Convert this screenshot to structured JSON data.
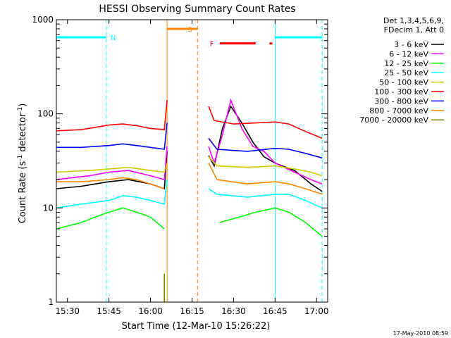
{
  "chart_data": {
    "type": "line",
    "title": "HESSI Observing Summary Count Rates",
    "xlabel": "Start Time (12-Mar-10 15:26:22)",
    "ylabel_main": "Count Rate (s",
    "ylabel_sup1": "-1",
    "ylabel_mid": " detector",
    "ylabel_sup2": "-1",
    "ylabel_end": ")",
    "y_scale": "log",
    "ylim": [
      1,
      1000
    ],
    "xlim": [
      "15:26",
      "17:04"
    ],
    "x_ticks": [
      "15:30",
      "15:45",
      "16:00",
      "16:15",
      "16:30",
      "16:45",
      "17:00"
    ],
    "y_ticks": [
      {
        "label": "1",
        "value": 1
      },
      {
        "label": "10",
        "value": 10
      },
      {
        "label": "100",
        "value": 100
      },
      {
        "label": "1000",
        "value": 1000
      }
    ],
    "legend_header": [
      "Det 1,3,4,5,6,9,",
      "FDecim 1, Att 0"
    ],
    "legend_placement": "right",
    "footer": "17-May-2010 08:59",
    "series": [
      {
        "name": "3 - 6 keV",
        "color": "#000000",
        "points": [
          [
            "15:26",
            16
          ],
          [
            "15:35",
            17
          ],
          [
            "15:45",
            19
          ],
          [
            "15:52",
            20
          ],
          [
            "16:00",
            18
          ],
          [
            "16:05",
            16
          ],
          [
            "16:06",
            40
          ],
          [
            "16:21",
            null
          ],
          [
            "16:21",
            36
          ],
          [
            "16:23",
            28
          ],
          [
            "16:26",
            70
          ],
          [
            "16:29",
            120
          ],
          [
            "16:33",
            80
          ],
          [
            "16:37",
            50
          ],
          [
            "16:41",
            35
          ],
          [
            "16:45",
            30
          ],
          [
            "16:52",
            25
          ],
          [
            "16:58",
            18
          ],
          [
            "17:02",
            15
          ]
        ]
      },
      {
        "name": "6 - 12 keV",
        "color": "#ff00ff",
        "points": [
          [
            "15:26",
            20
          ],
          [
            "15:38",
            22
          ],
          [
            "15:45",
            24
          ],
          [
            "15:52",
            25
          ],
          [
            "16:00",
            22
          ],
          [
            "16:05",
            20
          ],
          [
            "16:06",
            45
          ],
          [
            "16:21",
            null
          ],
          [
            "16:21",
            45
          ],
          [
            "16:23",
            30
          ],
          [
            "16:26",
            60
          ],
          [
            "16:29",
            140
          ],
          [
            "16:33",
            70
          ],
          [
            "16:37",
            45
          ],
          [
            "16:41",
            40
          ],
          [
            "16:45",
            30
          ],
          [
            "16:52",
            24
          ],
          [
            "16:58",
            20
          ],
          [
            "17:02",
            18
          ]
        ]
      },
      {
        "name": "12 - 25 keV",
        "color": "#00ff00",
        "points": [
          [
            "15:26",
            6
          ],
          [
            "15:35",
            7
          ],
          [
            "15:40",
            8
          ],
          [
            "15:45",
            9
          ],
          [
            "15:50",
            10
          ],
          [
            "15:55",
            9
          ],
          [
            "16:00",
            8
          ],
          [
            "16:05",
            6
          ],
          [
            "16:21",
            null
          ],
          [
            "16:25",
            7
          ],
          [
            "16:32",
            8
          ],
          [
            "16:38",
            9
          ],
          [
            "16:45",
            10
          ],
          [
            "16:50",
            9
          ],
          [
            "16:56",
            7
          ],
          [
            "17:02",
            5
          ]
        ]
      },
      {
        "name": "25 - 50 keV",
        "color": "#00ffff",
        "points": [
          [
            "15:26",
            10
          ],
          [
            "15:35",
            11
          ],
          [
            "15:45",
            12
          ],
          [
            "15:50",
            13.5
          ],
          [
            "15:55",
            13
          ],
          [
            "16:00",
            12
          ],
          [
            "16:05",
            11
          ],
          [
            "16:06",
            20
          ],
          [
            "16:21",
            null
          ],
          [
            "16:21",
            16
          ],
          [
            "16:24",
            14
          ],
          [
            "16:35",
            13
          ],
          [
            "16:45",
            14
          ],
          [
            "16:50",
            14
          ],
          [
            "16:56",
            12
          ],
          [
            "17:02",
            10
          ]
        ]
      },
      {
        "name": "50 - 100 keV",
        "color": "#cccc00",
        "points": [
          [
            "15:26",
            24
          ],
          [
            "15:38",
            25
          ],
          [
            "15:45",
            26
          ],
          [
            "15:52",
            27
          ],
          [
            "16:00",
            25
          ],
          [
            "16:05",
            24
          ],
          [
            "16:06",
            30
          ],
          [
            "16:21",
            null
          ],
          [
            "16:21",
            35
          ],
          [
            "16:24",
            28
          ],
          [
            "16:35",
            27
          ],
          [
            "16:45",
            28
          ],
          [
            "16:52",
            26
          ],
          [
            "16:58",
            24
          ],
          [
            "17:02",
            22
          ]
        ]
      },
      {
        "name": "100 - 300 keV",
        "color": "#ff0000",
        "points": [
          [
            "15:26",
            66
          ],
          [
            "15:35",
            68
          ],
          [
            "15:45",
            76
          ],
          [
            "15:50",
            78
          ],
          [
            "15:55",
            75
          ],
          [
            "16:00",
            70
          ],
          [
            "16:05",
            68
          ],
          [
            "16:06",
            140
          ],
          [
            "16:21",
            null
          ],
          [
            "16:21",
            120
          ],
          [
            "16:23",
            85
          ],
          [
            "16:30",
            78
          ],
          [
            "16:38",
            80
          ],
          [
            "16:45",
            82
          ],
          [
            "16:50",
            78
          ],
          [
            "16:56",
            65
          ],
          [
            "17:02",
            55
          ]
        ]
      },
      {
        "name": "300 - 800 keV",
        "color": "#0000ff",
        "points": [
          [
            "15:26",
            44
          ],
          [
            "15:35",
            44
          ],
          [
            "15:45",
            46
          ],
          [
            "15:50",
            48
          ],
          [
            "15:55",
            46
          ],
          [
            "16:00",
            44
          ],
          [
            "16:05",
            42
          ],
          [
            "16:06",
            80
          ],
          [
            "16:21",
            null
          ],
          [
            "16:21",
            55
          ],
          [
            "16:24",
            42
          ],
          [
            "16:35",
            40
          ],
          [
            "16:45",
            43
          ],
          [
            "16:50",
            42
          ],
          [
            "16:56",
            38
          ],
          [
            "17:02",
            34
          ]
        ]
      },
      {
        "name": "800 - 7000 keV",
        "color": "#ff8800",
        "points": [
          [
            "15:26",
            19
          ],
          [
            "15:35",
            19
          ],
          [
            "15:45",
            20
          ],
          [
            "15:50",
            21
          ],
          [
            "15:55",
            20
          ],
          [
            "16:00",
            18
          ],
          [
            "16:05",
            16
          ],
          [
            "16:21",
            null
          ],
          [
            "16:21",
            30
          ],
          [
            "16:24",
            20
          ],
          [
            "16:35",
            18
          ],
          [
            "16:45",
            19
          ],
          [
            "16:50",
            18
          ],
          [
            "16:56",
            16
          ],
          [
            "17:02",
            14
          ]
        ]
      },
      {
        "name": "7000 - 20000 keV",
        "color": "#808000",
        "points": [
          [
            "16:05",
            1
          ],
          [
            "16:05",
            2
          ]
        ]
      }
    ],
    "flags": [
      {
        "label": "N",
        "color": "#00ffff",
        "value": 650,
        "segments": [
          [
            "15:26",
            "15:44"
          ],
          [
            "16:45",
            "17:02"
          ]
        ]
      },
      {
        "label": "S",
        "color": "#ff8800",
        "value": 800,
        "segments": [
          [
            "16:06",
            "16:17"
          ]
        ]
      },
      {
        "label": "F",
        "color": "#ff0000",
        "value": 560,
        "segments": [
          [
            "16:25",
            "16:38"
          ],
          [
            "16:43",
            "16:44"
          ]
        ]
      }
    ],
    "markers": [
      {
        "time": "15:44",
        "color": "#00ffff",
        "style": "dashed"
      },
      {
        "time": "16:06",
        "color": "#ff8800",
        "style": "solid"
      },
      {
        "time": "16:17",
        "color": "#ff8800",
        "style": "dashed"
      },
      {
        "time": "16:45",
        "color": "#00ffff",
        "style": "solid"
      },
      {
        "time": "17:02",
        "color": "#00ffff",
        "style": "dashed"
      }
    ]
  }
}
